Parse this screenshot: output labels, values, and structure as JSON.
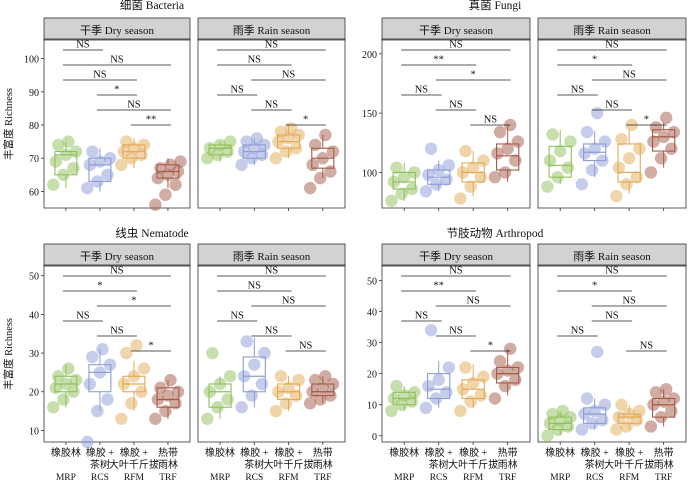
{
  "colors": {
    "MRP": "#8fbf5a",
    "RCS": "#8d9bd6",
    "RFM": "#e2aa55",
    "TRF": "#a45a47",
    "strip": "#d2d2d2"
  },
  "labels": {
    "season_dry": "干季 Dry season",
    "season_rain": "雨季 Rain season",
    "ylabel": "丰富度 Richness",
    "x_cn": [
      [
        "橡胶林"
      ],
      [
        "橡胶 +",
        "茶树"
      ],
      [
        "橡胶 +",
        "大叶千斤拔"
      ],
      [
        "热带",
        "雨林"
      ]
    ],
    "x_en": [
      "MRP",
      "RCS",
      "RFM",
      "TRF"
    ]
  },
  "chart_data": [
    {
      "type": "box",
      "title": "细菌 Bacteria",
      "ylim": [
        55,
        105
      ],
      "yticks": [
        60,
        70,
        80,
        90,
        100
      ],
      "panels": [
        {
          "season": "Dry",
          "boxes": [
            {
              "q1": 65,
              "med": 71,
              "q3": 72,
              "lo": 61,
              "hi": 75
            },
            {
              "q1": 63,
              "med": 68,
              "q3": 70,
              "lo": 60,
              "hi": 73
            },
            {
              "q1": 70,
              "med": 72,
              "q3": 74,
              "lo": 67,
              "hi": 76
            },
            {
              "q1": 64,
              "med": 66,
              "q3": 68,
              "lo": 61,
              "hi": 70
            }
          ],
          "points": [
            [
              62,
              65,
              67,
              69,
              71,
              72,
              74,
              75
            ],
            [
              61,
              63,
              65,
              68,
              69,
              70,
              72
            ],
            [
              68,
              70,
              71,
              72,
              73,
              74,
              75
            ],
            [
              56,
              59,
              62,
              64,
              65,
              66,
              67,
              68,
              69
            ]
          ],
          "sig": [
            [
              "NS",
              0,
              1
            ],
            [
              "NS",
              0,
              3
            ],
            [
              "NS",
              0,
              2
            ],
            [
              "*",
              1,
              2
            ],
            [
              "NS",
              1,
              3
            ],
            [
              "**",
              2,
              3
            ]
          ]
        },
        {
          "season": "Rain",
          "boxes": [
            {
              "q1": 71,
              "med": 73,
              "q3": 74,
              "lo": 69,
              "hi": 75
            },
            {
              "q1": 70,
              "med": 72,
              "q3": 74,
              "lo": 68,
              "hi": 76
            },
            {
              "q1": 73,
              "med": 75,
              "q3": 77,
              "lo": 70,
              "hi": 80
            },
            {
              "q1": 67,
              "med": 70,
              "q3": 73,
              "lo": 64,
              "hi": 77
            }
          ],
          "points": [
            [
              70,
              71,
              72,
              73,
              74,
              75
            ],
            [
              68,
              70,
              71,
              72,
              73,
              74,
              75,
              76
            ],
            [
              70,
              72,
              73,
              75,
              76,
              77,
              78,
              79
            ],
            [
              61,
              64,
              66,
              68,
              70,
              72,
              74,
              77
            ]
          ],
          "sig": [
            [
              "NS",
              0,
              3
            ],
            [
              "NS",
              0,
              2
            ],
            [
              "NS",
              1,
              3
            ],
            [
              "NS",
              0,
              1
            ],
            [
              "NS",
              1,
              2
            ],
            [
              "*",
              2,
              3
            ]
          ]
        }
      ]
    },
    {
      "type": "box",
      "title": "真菌 Fungi",
      "ylim": [
        70,
        210
      ],
      "yticks": [
        100,
        150,
        200
      ],
      "panels": [
        {
          "season": "Dry",
          "boxes": [
            {
              "q1": 86,
              "med": 92,
              "q3": 100,
              "lo": 76,
              "hi": 108
            },
            {
              "q1": 90,
              "med": 96,
              "q3": 102,
              "lo": 84,
              "hi": 110
            },
            {
              "q1": 92,
              "med": 100,
              "q3": 108,
              "lo": 80,
              "hi": 118
            },
            {
              "q1": 102,
              "med": 114,
              "q3": 124,
              "lo": 92,
              "hi": 140
            }
          ],
          "points": [
            [
              76,
              82,
              86,
              92,
              96,
              100,
              104
            ],
            [
              84,
              90,
              94,
              98,
              102,
              106,
              120
            ],
            [
              78,
              88,
              96,
              100,
              104,
              110,
              118
            ],
            [
              96,
              100,
              110,
              116,
              120,
              126,
              134,
              140
            ]
          ],
          "sig": [
            [
              "NS",
              0,
              3
            ],
            [
              "**",
              0,
              2
            ],
            [
              "*",
              1,
              3
            ],
            [
              "NS",
              0,
              1
            ],
            [
              "NS",
              1,
              2
            ],
            [
              "NS",
              2,
              3
            ]
          ]
        },
        {
          "season": "Rain",
          "boxes": [
            {
              "q1": 96,
              "med": 106,
              "q3": 122,
              "lo": 90,
              "hi": 136
            },
            {
              "q1": 110,
              "med": 117,
              "q3": 124,
              "lo": 96,
              "hi": 135
            },
            {
              "q1": 92,
              "med": 100,
              "q3": 124,
              "lo": 82,
              "hi": 136
            },
            {
              "q1": 118,
              "med": 130,
              "q3": 136,
              "lo": 104,
              "hi": 142
            }
          ],
          "points": [
            [
              88,
              96,
              104,
              110,
              118,
              126,
              132
            ],
            [
              90,
              102,
              110,
              116,
              120,
              126,
              134,
              150
            ],
            [
              80,
              90,
              96,
              104,
              112,
              120,
              128,
              140
            ],
            [
              100,
              112,
              120,
              126,
              130,
              134,
              138,
              146
            ]
          ],
          "sig": [
            [
              "NS",
              0,
              3
            ],
            [
              "*",
              0,
              2
            ],
            [
              "NS",
              1,
              3
            ],
            [
              "NS",
              0,
              1
            ],
            [
              "NS",
              1,
              2
            ],
            [
              "*",
              2,
              3
            ]
          ]
        }
      ]
    },
    {
      "type": "box",
      "title": "线虫 Nematode",
      "ylim": [
        7,
        52
      ],
      "yticks": [
        10,
        20,
        30,
        40,
        50
      ],
      "panels": [
        {
          "season": "Dry",
          "boxes": [
            {
              "q1": 20,
              "med": 22,
              "q3": 24,
              "lo": 16,
              "hi": 27
            },
            {
              "q1": 20,
              "med": 25,
              "q3": 27,
              "lo": 15,
              "hi": 31
            },
            {
              "q1": 20,
              "med": 22,
              "q3": 24,
              "lo": 15,
              "hi": 28
            },
            {
              "q1": 16,
              "med": 18,
              "q3": 21,
              "lo": 13,
              "hi": 23
            }
          ],
          "points": [
            [
              16,
              18,
              20,
              21,
              22,
              23,
              24,
              26
            ],
            [
              7,
              15,
              18,
              22,
              25,
              27,
              29,
              31
            ],
            [
              13,
              17,
              20,
              22,
              24,
              26,
              30,
              32
            ],
            [
              13,
              15,
              17,
              18,
              19,
              20,
              21,
              23
            ]
          ],
          "sig": [
            [
              "NS",
              0,
              3
            ],
            [
              "*",
              0,
              2
            ],
            [
              "*",
              1,
              3
            ],
            [
              "NS",
              0,
              1
            ],
            [
              "NS",
              1,
              2
            ],
            [
              "*",
              2,
              3
            ]
          ]
        },
        {
          "season": "Rain",
          "boxes": [
            {
              "q1": 16,
              "med": 20,
              "q3": 22,
              "lo": 13,
              "hi": 24
            },
            {
              "q1": 20,
              "med": 24,
              "q3": 29,
              "lo": 16,
              "hi": 34
            },
            {
              "q1": 18,
              "med": 20,
              "q3": 22,
              "lo": 15,
              "hi": 24
            },
            {
              "q1": 19,
              "med": 20,
              "q3": 22,
              "lo": 17,
              "hi": 24
            }
          ],
          "points": [
            [
              13,
              16,
              18,
              20,
              22,
              24,
              30
            ],
            [
              16,
              19,
              22,
              24,
              27,
              30,
              33
            ],
            [
              15,
              17,
              19,
              20,
              21,
              23,
              24
            ],
            [
              17,
              18,
              19,
              20,
              21,
              22,
              23,
              24
            ]
          ],
          "sig": [
            [
              "NS",
              0,
              3
            ],
            [
              "NS",
              0,
              2
            ],
            [
              "NS",
              1,
              3
            ],
            [
              "NS",
              0,
              1
            ],
            [
              "NS",
              1,
              2
            ],
            [
              "NS",
              2,
              3
            ]
          ]
        }
      ]
    },
    {
      "type": "box",
      "title": "节肢动物 Arthropod",
      "ylim": [
        -2,
        54
      ],
      "yticks": [
        0,
        10,
        20,
        30,
        40,
        50
      ],
      "panels": [
        {
          "season": "Dry",
          "boxes": [
            {
              "q1": 10,
              "med": 12,
              "q3": 14,
              "lo": 8,
              "hi": 16
            },
            {
              "q1": 12,
              "med": 15,
              "q3": 20,
              "lo": 9,
              "hi": 24
            },
            {
              "q1": 12,
              "med": 15,
              "q3": 18,
              "lo": 9,
              "hi": 23
            },
            {
              "q1": 17,
              "med": 20,
              "q3": 22,
              "lo": 13,
              "hi": 28
            }
          ],
          "points": [
            [
              8,
              10,
              11,
              12,
              13,
              14,
              16
            ],
            [
              9,
              12,
              14,
              16,
              18,
              22,
              34
            ],
            [
              8,
              11,
              13,
              15,
              17,
              19,
              22
            ],
            [
              12,
              16,
              18,
              20,
              21,
              22,
              24,
              28
            ]
          ],
          "sig": [
            [
              "NS",
              0,
              3
            ],
            [
              "**",
              0,
              2
            ],
            [
              "NS",
              1,
              3
            ],
            [
              "NS",
              0,
              1
            ],
            [
              "NS",
              1,
              2
            ],
            [
              "*",
              2,
              3
            ]
          ]
        },
        {
          "season": "Rain",
          "boxes": [
            {
              "q1": 2,
              "med": 4,
              "q3": 6,
              "lo": 0,
              "hi": 8
            },
            {
              "q1": 4,
              "med": 7,
              "q3": 9,
              "lo": 2,
              "hi": 12
            },
            {
              "q1": 4,
              "med": 6,
              "q3": 7,
              "lo": 2,
              "hi": 10
            },
            {
              "q1": 6,
              "med": 10,
              "q3": 12,
              "lo": 3,
              "hi": 15
            }
          ],
          "points": [
            [
              0,
              2,
              3,
              4,
              5,
              6,
              7,
              8
            ],
            [
              2,
              4,
              5,
              7,
              8,
              10,
              12,
              27
            ],
            [
              2,
              3,
              5,
              6,
              7,
              8,
              10
            ],
            [
              3,
              6,
              8,
              10,
              11,
              12,
              14,
              15
            ]
          ],
          "sig": [
            [
              "NS",
              0,
              3
            ],
            [
              "*",
              0,
              2
            ],
            [
              "NS",
              1,
              3
            ],
            [
              "NS",
              1,
              2
            ],
            [
              "NS",
              0,
              1
            ],
            [
              "NS",
              2,
              3
            ]
          ]
        }
      ]
    }
  ]
}
